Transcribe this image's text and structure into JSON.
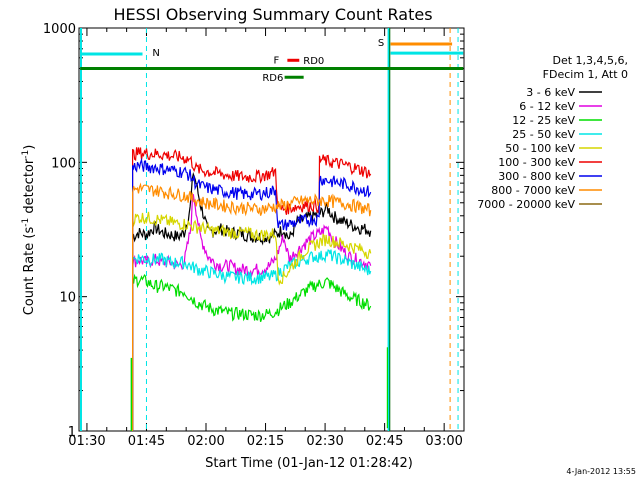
{
  "chart_data": {
    "type": "line",
    "title": "HESSI Observing Summary Count Rates",
    "xlabel": "Start Time (01-Jan-12 01:28:42)",
    "ylabel_main": "Count Rate (s",
    "ylabel_sup1": "-1",
    "ylabel_mid": " detector",
    "ylabel_sup2": "-1",
    "ylabel_end": ")",
    "y_scale": "log",
    "ylim": [
      1,
      1000
    ],
    "xlim_minutes": [
      88,
      185
    ],
    "x_ticks": [
      {
        "min": 90,
        "label": "01:30"
      },
      {
        "min": 105,
        "label": "01:45"
      },
      {
        "min": 120,
        "label": "02:00"
      },
      {
        "min": 135,
        "label": "02:15"
      },
      {
        "min": 150,
        "label": "02:30"
      },
      {
        "min": 165,
        "label": "02:45"
      },
      {
        "min": 180,
        "label": "03:00"
      }
    ],
    "y_ticks": [
      {
        "v": 1,
        "label": "1"
      },
      {
        "v": 10,
        "label": "10"
      },
      {
        "v": 100,
        "label": "100"
      },
      {
        "v": 1000,
        "label": "1000"
      }
    ],
    "legend_header1": "Det 1,3,4,5,6,",
    "legend_header2": "FDecim 1, Att 0",
    "legend_position": "right",
    "series": [
      {
        "name": "3 - 6 keV",
        "color": "#000000",
        "points": [
          [
            101.5,
            28
          ],
          [
            103,
            30
          ],
          [
            105,
            29
          ],
          [
            107,
            33
          ],
          [
            109,
            30
          ],
          [
            111,
            29
          ],
          [
            113,
            28
          ],
          [
            114.5,
            30
          ],
          [
            116,
            45
          ],
          [
            116.8,
            85
          ],
          [
            117.5,
            70
          ],
          [
            118.5,
            50
          ],
          [
            119.5,
            40
          ],
          [
            120.5,
            30
          ],
          [
            122,
            31
          ],
          [
            124,
            32
          ],
          [
            126,
            30
          ],
          [
            128,
            30
          ],
          [
            130,
            29
          ],
          [
            132,
            28
          ],
          [
            134,
            28
          ],
          [
            136,
            28
          ],
          [
            137.5,
            29
          ],
          [
            139.5,
            32
          ],
          [
            141,
            27
          ],
          [
            143,
            36
          ],
          [
            145,
            38
          ],
          [
            147,
            40
          ],
          [
            149,
            42
          ],
          [
            150.5,
            46
          ],
          [
            152,
            40
          ],
          [
            154,
            37
          ],
          [
            156,
            35
          ],
          [
            158,
            33
          ],
          [
            160,
            32
          ],
          [
            161.5,
            31
          ]
        ]
      },
      {
        "name": "6 - 12 keV",
        "color": "#e000e0",
        "points": [
          [
            101.5,
            18
          ],
          [
            103,
            19
          ],
          [
            105,
            18
          ],
          [
            107,
            19
          ],
          [
            109,
            18
          ],
          [
            111,
            18
          ],
          [
            113,
            17
          ],
          [
            114.5,
            18
          ],
          [
            116,
            30
          ],
          [
            116.8,
            60
          ],
          [
            117.5,
            45
          ],
          [
            118.5,
            28
          ],
          [
            119.5,
            24
          ],
          [
            120.5,
            20
          ],
          [
            122,
            18
          ],
          [
            124,
            17
          ],
          [
            126,
            17
          ],
          [
            128,
            16
          ],
          [
            130,
            16
          ],
          [
            132,
            16
          ],
          [
            134,
            16
          ],
          [
            136,
            17
          ],
          [
            137.5,
            19
          ],
          [
            139.5,
            28
          ],
          [
            141,
            19
          ],
          [
            143,
            22
          ],
          [
            145,
            25
          ],
          [
            147,
            28
          ],
          [
            149,
            30
          ],
          [
            150.5,
            33
          ],
          [
            152,
            27
          ],
          [
            154,
            23
          ],
          [
            156,
            20
          ],
          [
            158,
            19
          ],
          [
            160,
            18
          ],
          [
            161.5,
            17
          ]
        ]
      },
      {
        "name": "12 - 25 keV",
        "color": "#00dd00",
        "points": [
          [
            101.5,
            13
          ],
          [
            103,
            13.5
          ],
          [
            105,
            13
          ],
          [
            107,
            12
          ],
          [
            109,
            12
          ],
          [
            111,
            11.5
          ],
          [
            113,
            11
          ],
          [
            114.5,
            11
          ],
          [
            116,
            10
          ],
          [
            118,
            9
          ],
          [
            120,
            8.5
          ],
          [
            122,
            8
          ],
          [
            124,
            7.8
          ],
          [
            126,
            7.5
          ],
          [
            128,
            7.5
          ],
          [
            130,
            7.4
          ],
          [
            132,
            7.3
          ],
          [
            134,
            7.3
          ],
          [
            136,
            7.5
          ],
          [
            137.5,
            7.8
          ],
          [
            139.5,
            8.5
          ],
          [
            141,
            9
          ],
          [
            143,
            10
          ],
          [
            145,
            11
          ],
          [
            147,
            12
          ],
          [
            149,
            12.5
          ],
          [
            150.5,
            13
          ],
          [
            152,
            12
          ],
          [
            154,
            11
          ],
          [
            156,
            10
          ],
          [
            158,
            9.5
          ],
          [
            160,
            9
          ],
          [
            161.5,
            8.5
          ]
        ]
      },
      {
        "name": "25 - 50 keV",
        "color": "#00e5e5",
        "points": [
          [
            101.5,
            19
          ],
          [
            103,
            19.5
          ],
          [
            105,
            19
          ],
          [
            107,
            19
          ],
          [
            109,
            19
          ],
          [
            111,
            18
          ],
          [
            113,
            18
          ],
          [
            114.5,
            18
          ],
          [
            116,
            17
          ],
          [
            118,
            16
          ],
          [
            120,
            15.5
          ],
          [
            122,
            15
          ],
          [
            124,
            14.5
          ],
          [
            126,
            14
          ],
          [
            128,
            14
          ],
          [
            130,
            14
          ],
          [
            132,
            13.8
          ],
          [
            134,
            14
          ],
          [
            136,
            14
          ],
          [
            137.5,
            14.5
          ],
          [
            139.5,
            16
          ],
          [
            141,
            17
          ],
          [
            143,
            18
          ],
          [
            145,
            19
          ],
          [
            147,
            20
          ],
          [
            149,
            20
          ],
          [
            150.5,
            21
          ],
          [
            152,
            20
          ],
          [
            154,
            19
          ],
          [
            156,
            18
          ],
          [
            158,
            17
          ],
          [
            160,
            16
          ],
          [
            161.5,
            15.5
          ]
        ]
      },
      {
        "name": "50 - 100 keV",
        "color": "#d6d600",
        "points": [
          [
            101.5,
            38
          ],
          [
            103,
            39
          ],
          [
            105,
            39
          ],
          [
            107,
            38
          ],
          [
            109,
            37
          ],
          [
            111,
            36
          ],
          [
            113,
            35
          ],
          [
            114.5,
            35
          ],
          [
            116,
            34
          ],
          [
            118,
            33
          ],
          [
            120,
            32
          ],
          [
            122,
            31
          ],
          [
            124,
            31
          ],
          [
            126,
            30
          ],
          [
            128,
            30
          ],
          [
            130,
            30
          ],
          [
            132,
            29
          ],
          [
            134,
            29
          ],
          [
            136,
            29
          ],
          [
            137.5,
            30
          ],
          [
            138.2,
            14
          ],
          [
            139.5,
            14
          ],
          [
            141,
            16
          ],
          [
            143,
            19
          ],
          [
            145,
            22
          ],
          [
            147,
            24
          ],
          [
            149,
            26
          ],
          [
            150.5,
            27
          ],
          [
            152,
            26
          ],
          [
            154,
            25
          ],
          [
            156,
            24
          ],
          [
            158,
            23
          ],
          [
            160,
            22
          ],
          [
            161.5,
            21
          ]
        ]
      },
      {
        "name": "100 - 300 keV",
        "color": "#ee0000",
        "points": [
          [
            101.5,
            115
          ],
          [
            103,
            118
          ],
          [
            105,
            117
          ],
          [
            107,
            116
          ],
          [
            109,
            115
          ],
          [
            111,
            112
          ],
          [
            113,
            110
          ],
          [
            114.5,
            108
          ],
          [
            116,
            105
          ],
          [
            117.5,
            90
          ],
          [
            118.5,
            88
          ],
          [
            120,
            86
          ],
          [
            122,
            84
          ],
          [
            124,
            82
          ],
          [
            126,
            80
          ],
          [
            128,
            79
          ],
          [
            130,
            78
          ],
          [
            132,
            78
          ],
          [
            134,
            80
          ],
          [
            136,
            82
          ],
          [
            137.5,
            86
          ],
          [
            138.2,
            45
          ],
          [
            139.5,
            45
          ],
          [
            141,
            46
          ],
          [
            143,
            47
          ],
          [
            145,
            48
          ],
          [
            147,
            48
          ],
          [
            148.5,
            47
          ],
          [
            148.6,
            105
          ],
          [
            150,
            103
          ],
          [
            152,
            100
          ],
          [
            154,
            97
          ],
          [
            156,
            94
          ],
          [
            158,
            90
          ],
          [
            160,
            86
          ],
          [
            161.5,
            82
          ]
        ]
      },
      {
        "name": "300 - 800 keV",
        "color": "#0000ee",
        "points": [
          [
            101.5,
            92
          ],
          [
            103,
            95
          ],
          [
            105,
            93
          ],
          [
            107,
            92
          ],
          [
            109,
            90
          ],
          [
            111,
            88
          ],
          [
            113,
            86
          ],
          [
            114.5,
            85
          ],
          [
            116,
            80
          ],
          [
            117.5,
            70
          ],
          [
            118.5,
            67
          ],
          [
            120,
            65
          ],
          [
            122,
            63
          ],
          [
            124,
            61
          ],
          [
            126,
            60
          ],
          [
            128,
            59
          ],
          [
            130,
            58
          ],
          [
            132,
            58
          ],
          [
            134,
            59
          ],
          [
            136,
            60
          ],
          [
            137.5,
            63
          ],
          [
            138.2,
            34
          ],
          [
            139.5,
            34
          ],
          [
            141,
            35
          ],
          [
            143,
            36
          ],
          [
            145,
            37
          ],
          [
            147,
            38
          ],
          [
            148.5,
            38
          ],
          [
            148.6,
            76
          ],
          [
            150,
            74
          ],
          [
            152,
            72
          ],
          [
            154,
            70
          ],
          [
            156,
            68
          ],
          [
            158,
            65
          ],
          [
            160,
            62
          ],
          [
            161.5,
            60
          ]
        ]
      },
      {
        "name": "800 - 7000 keV",
        "color": "#ff8c00",
        "points": [
          [
            101.5,
            62
          ],
          [
            103,
            64
          ],
          [
            105,
            63
          ],
          [
            107,
            62
          ],
          [
            109,
            61
          ],
          [
            111,
            59
          ],
          [
            113,
            58
          ],
          [
            114.5,
            57
          ],
          [
            116,
            55
          ],
          [
            118,
            52
          ],
          [
            120,
            50
          ],
          [
            122,
            49
          ],
          [
            124,
            48
          ],
          [
            126,
            47
          ],
          [
            128,
            46
          ],
          [
            130,
            46
          ],
          [
            132,
            45
          ],
          [
            134,
            45
          ],
          [
            136,
            46
          ],
          [
            137.5,
            47
          ],
          [
            139.5,
            48
          ],
          [
            141,
            49
          ],
          [
            143,
            51
          ],
          [
            145,
            52
          ],
          [
            147,
            52
          ],
          [
            149,
            52
          ],
          [
            150.5,
            52
          ],
          [
            152,
            51
          ],
          [
            154,
            50
          ],
          [
            156,
            49
          ],
          [
            158,
            47
          ],
          [
            160,
            45
          ],
          [
            161.5,
            44
          ]
        ]
      },
      {
        "name": "7000 - 20000 keV",
        "color": "#8b6914",
        "points": []
      }
    ],
    "top_annotations": {
      "n_label": "N",
      "s_label": "S",
      "f_label": "F",
      "rd_label": "RD",
      "rd6_label": "RD6",
      "rd0_label": "RD0"
    }
  },
  "footer_date": "4-Jan-2012 13:55"
}
